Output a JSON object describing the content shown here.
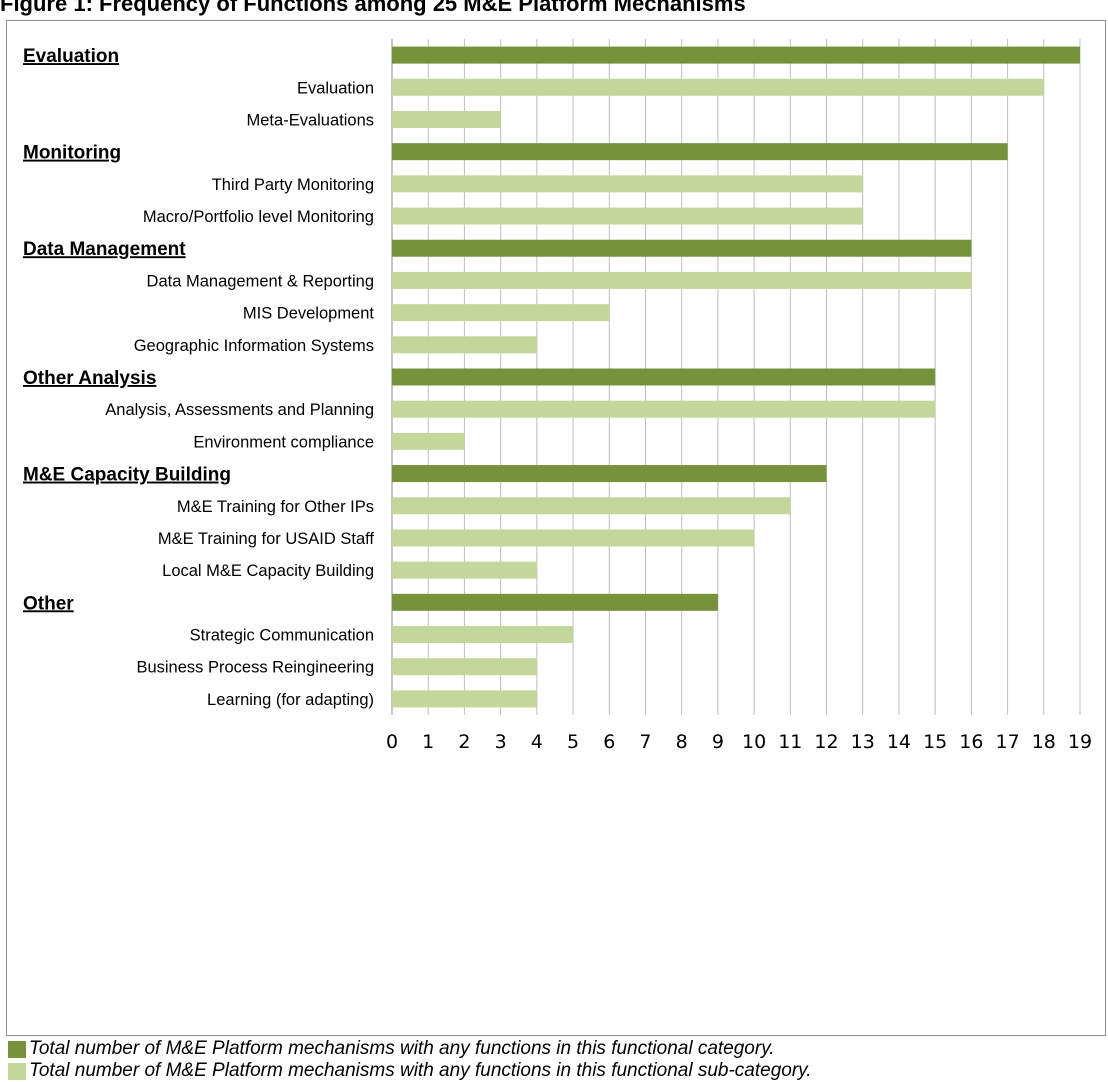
{
  "title": "Figure 1: Frequency of Functions among 25 M&E Platform Mechanisms",
  "colors": {
    "category": "#76933c",
    "subcategory": "#c4d79b",
    "grid": "#bfbfbf",
    "frame": "#8c8c8c"
  },
  "chart_data": {
    "type": "bar",
    "orientation": "horizontal",
    "xlim": [
      0,
      19
    ],
    "x_ticks": [
      0,
      1,
      2,
      3,
      4,
      5,
      6,
      7,
      8,
      9,
      10,
      11,
      12,
      13,
      14,
      15,
      16,
      17,
      18,
      19
    ],
    "grid": "vertical",
    "rows": [
      {
        "label": "Evaluation",
        "value": 19,
        "kind": "category"
      },
      {
        "label": "Evaluation",
        "value": 18,
        "kind": "subcategory"
      },
      {
        "label": "Meta-Evaluations",
        "value": 3,
        "kind": "subcategory"
      },
      {
        "label": "Monitoring",
        "value": 17,
        "kind": "category"
      },
      {
        "label": "Third Party Monitoring",
        "value": 13,
        "kind": "subcategory"
      },
      {
        "label": "Macro/Portfolio level Monitoring",
        "value": 13,
        "kind": "subcategory"
      },
      {
        "label": "Data Management",
        "value": 16,
        "kind": "category"
      },
      {
        "label": "Data Management & Reporting",
        "value": 16,
        "kind": "subcategory"
      },
      {
        "label": "MIS Development",
        "value": 6,
        "kind": "subcategory"
      },
      {
        "label": "Geographic Information Systems",
        "value": 4,
        "kind": "subcategory"
      },
      {
        "label": "Other Analysis",
        "value": 15,
        "kind": "category"
      },
      {
        "label": "Analysis, Assessments and Planning",
        "value": 15,
        "kind": "subcategory"
      },
      {
        "label": "Environment compliance",
        "value": 2,
        "kind": "subcategory"
      },
      {
        "label": "M&E Capacity Building",
        "value": 12,
        "kind": "category"
      },
      {
        "label": "M&E Training for Other IPs",
        "value": 11,
        "kind": "subcategory"
      },
      {
        "label": "M&E Training for USAID Staff",
        "value": 10,
        "kind": "subcategory"
      },
      {
        "label": "Local M&E Capacity Building",
        "value": 4,
        "kind": "subcategory"
      },
      {
        "label": "Other",
        "value": 9,
        "kind": "category"
      },
      {
        "label": "Strategic Communication",
        "value": 5,
        "kind": "subcategory"
      },
      {
        "label": "Business Process Reingineering",
        "value": 4,
        "kind": "subcategory"
      },
      {
        "label": "Learning (for adapting)",
        "value": 4,
        "kind": "subcategory"
      }
    ],
    "legend": [
      {
        "kind": "category",
        "text": "Total number of M&E Platform mechanisms with any functions in this functional category."
      },
      {
        "kind": "subcategory",
        "text": "Total number of M&E Platform mechanisms with any functions in this functional sub-category."
      }
    ],
    "legend_placement": "bottom"
  }
}
